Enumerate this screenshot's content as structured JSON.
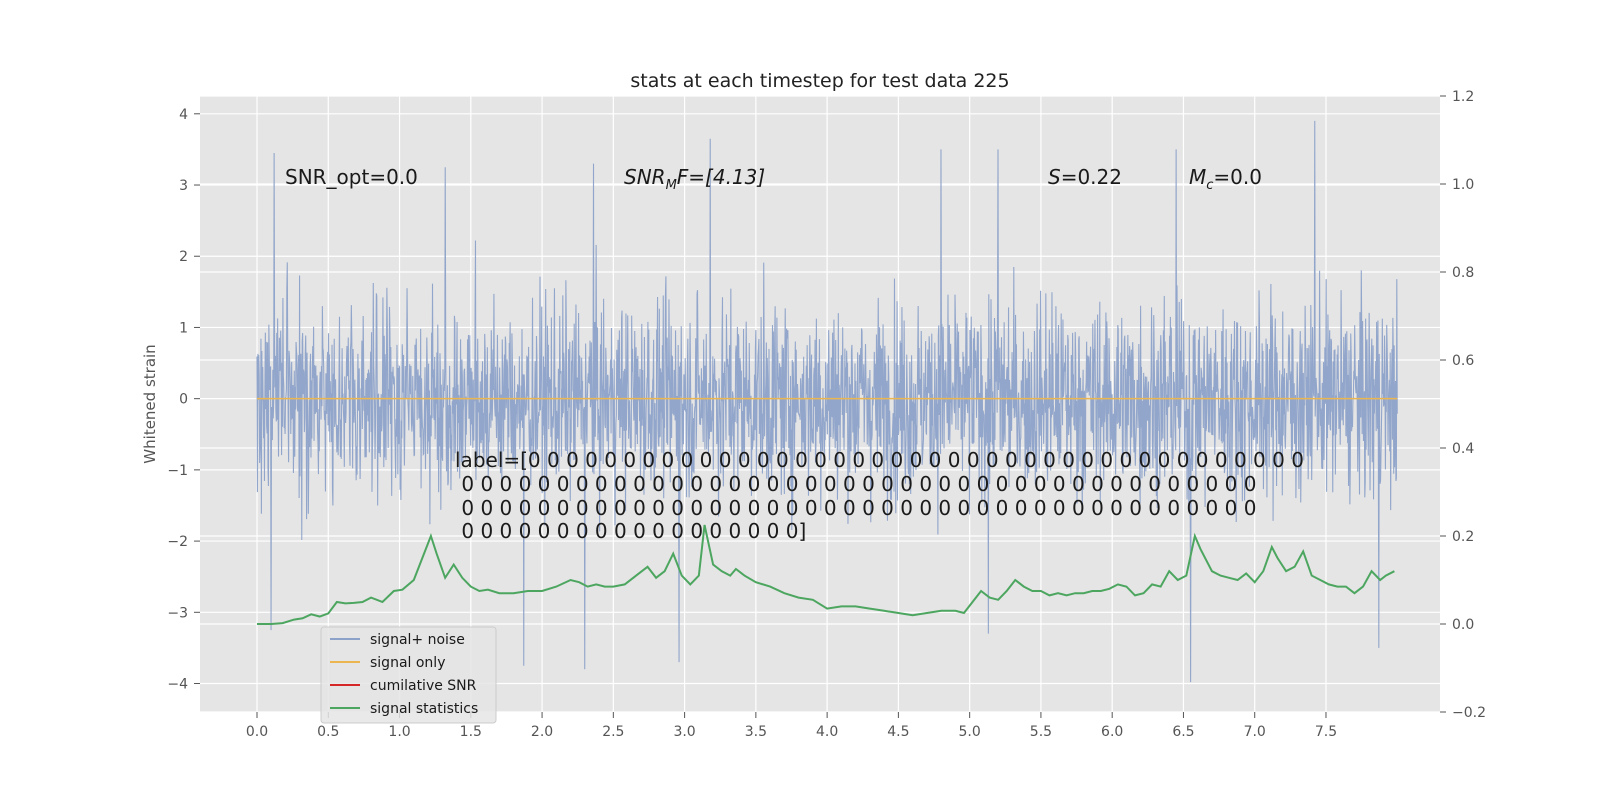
{
  "chart_data": {
    "type": "line",
    "title": "stats at each timestep for test data 225",
    "xlabel": "",
    "ylabel": "Whitened strain",
    "xlim": [
      -0.4,
      8.3
    ],
    "ylim": [
      -4.4,
      4.25
    ],
    "y2lim": [
      -0.2,
      1.2
    ],
    "grid": true,
    "legend_position": "lower-left",
    "x_ticks": [
      "0.0",
      "0.5",
      "1.0",
      "1.5",
      "2.0",
      "2.5",
      "3.0",
      "3.5",
      "4.0",
      "4.5",
      "5.0",
      "5.5",
      "6.0",
      "6.5",
      "7.0",
      "7.5"
    ],
    "y_ticks": [
      "4",
      "3",
      "2",
      "1",
      "0",
      "−1",
      "−2",
      "−3",
      "−4"
    ],
    "y2_ticks": [
      "1.2",
      "1.0",
      "0.8",
      "0.6",
      "0.4",
      "0.2",
      "0.0",
      "−0.2"
    ],
    "annotations": {
      "snr_opt": "SNR_opt=0.0",
      "snr_mf_main": "SNR",
      "snr_mf_sub": "M",
      "snr_mf_rest": "F=[4.13]",
      "s_italic": "S",
      "s_rest": "=0.22",
      "mc_main": "M",
      "mc_sub": "c",
      "mc_rest": "=0.0",
      "label_lines": [
        "label=[0 0 0 0 0 0 0 0 0 0 0 0 0 0 0 0 0 0 0 0 0 0 0 0 0 0 0 0 0 0 0 0 0 0 0 0 0 0 0 0 0",
        " 0 0 0 0 0 0 0 0 0 0 0 0 0 0 0 0 0 0 0 0 0 0 0 0 0 0 0 0 0 0 0 0 0 0 0 0 0 0 0 0 0 0",
        " 0 0 0 0 0 0 0 0 0 0 0 0 0 0 0 0 0 0 0 0 0 0 0 0 0 0 0 0 0 0 0 0 0 0 0 0 0 0 0 0 0 0",
        " 0 0 0 0 0 0 0 0 0 0 0 0 0 0 0 0 0 0]"
      ]
    },
    "legend": [
      {
        "label": "signal+ noise",
        "color": "#8da2c9"
      },
      {
        "label": "signal only",
        "color": "#ebb64f"
      },
      {
        "label": "cumilative SNR",
        "color": "#d62728"
      },
      {
        "label": "signal statistics",
        "color": "#4da660"
      }
    ],
    "series": [
      {
        "name": "signal+ noise",
        "axis": "left",
        "x_range": [
          0.0,
          8.0
        ],
        "envelope_upper_typical": 2.2,
        "envelope_lower_typical": -2.2,
        "peak_values": [
          {
            "x": 0.12,
            "y": 3.45
          },
          {
            "x": 1.32,
            "y": 3.25
          },
          {
            "x": 2.36,
            "y": 3.3
          },
          {
            "x": 3.18,
            "y": 3.65
          },
          {
            "x": 4.8,
            "y": 3.5
          },
          {
            "x": 5.2,
            "y": 3.5
          },
          {
            "x": 6.45,
            "y": 3.5
          },
          {
            "x": 7.42,
            "y": 3.9
          },
          {
            "x": 0.1,
            "y": -3.25
          },
          {
            "x": 1.87,
            "y": -3.75
          },
          {
            "x": 2.3,
            "y": -3.8
          },
          {
            "x": 2.96,
            "y": -3.7
          },
          {
            "x": 5.13,
            "y": -3.3
          },
          {
            "x": 6.55,
            "y": -3.98
          },
          {
            "x": 7.87,
            "y": -3.5
          }
        ]
      },
      {
        "name": "signal only",
        "axis": "left",
        "x": [
          0.0,
          8.0
        ],
        "y": [
          0.0,
          0.0
        ]
      },
      {
        "name": "signal statistics",
        "axis": "right",
        "x": [
          0.0,
          0.1,
          0.18,
          0.26,
          0.32,
          0.38,
          0.44,
          0.5,
          0.56,
          0.62,
          0.68,
          0.74,
          0.8,
          0.88,
          0.96,
          1.02,
          1.1,
          1.16,
          1.22,
          1.26,
          1.32,
          1.38,
          1.44,
          1.5,
          1.56,
          1.62,
          1.7,
          1.8,
          1.9,
          2.0,
          2.1,
          2.2,
          2.26,
          2.32,
          2.38,
          2.44,
          2.5,
          2.58,
          2.66,
          2.74,
          2.8,
          2.86,
          2.92,
          2.98,
          3.04,
          3.1,
          3.14,
          3.2,
          3.26,
          3.32,
          3.36,
          3.42,
          3.5,
          3.6,
          3.7,
          3.8,
          3.9,
          4.0,
          4.1,
          4.2,
          4.3,
          4.4,
          4.5,
          4.6,
          4.7,
          4.8,
          4.9,
          4.96,
          5.02,
          5.08,
          5.14,
          5.2,
          5.26,
          5.32,
          5.38,
          5.44,
          5.5,
          5.56,
          5.62,
          5.68,
          5.74,
          5.8,
          5.86,
          5.92,
          5.98,
          6.04,
          6.1,
          6.16,
          6.22,
          6.28,
          6.34,
          6.4,
          6.46,
          6.52,
          6.58,
          6.62,
          6.7,
          6.76,
          6.82,
          6.88,
          6.94,
          7.0,
          7.06,
          7.12,
          7.16,
          7.22,
          7.28,
          7.34,
          7.4,
          7.46,
          7.52,
          7.58,
          7.64,
          7.7,
          7.76,
          7.82,
          7.88,
          7.92,
          7.98
        ],
        "y": [
          0.0,
          0.0,
          0.002,
          0.01,
          0.013,
          0.022,
          0.017,
          0.024,
          0.05,
          0.047,
          0.048,
          0.05,
          0.06,
          0.05,
          0.075,
          0.078,
          0.1,
          0.15,
          0.2,
          0.16,
          0.105,
          0.135,
          0.105,
          0.085,
          0.075,
          0.078,
          0.07,
          0.07,
          0.075,
          0.075,
          0.085,
          0.1,
          0.095,
          0.085,
          0.09,
          0.085,
          0.085,
          0.09,
          0.11,
          0.13,
          0.105,
          0.12,
          0.16,
          0.11,
          0.09,
          0.11,
          0.225,
          0.135,
          0.12,
          0.11,
          0.125,
          0.11,
          0.095,
          0.085,
          0.07,
          0.06,
          0.055,
          0.035,
          0.04,
          0.04,
          0.035,
          0.03,
          0.025,
          0.02,
          0.025,
          0.03,
          0.03,
          0.025,
          0.05,
          0.075,
          0.06,
          0.055,
          0.075,
          0.1,
          0.085,
          0.075,
          0.075,
          0.065,
          0.07,
          0.065,
          0.07,
          0.07,
          0.075,
          0.075,
          0.08,
          0.09,
          0.085,
          0.065,
          0.07,
          0.09,
          0.085,
          0.12,
          0.1,
          0.11,
          0.2,
          0.17,
          0.12,
          0.11,
          0.105,
          0.1,
          0.115,
          0.095,
          0.12,
          0.175,
          0.15,
          0.12,
          0.13,
          0.165,
          0.11,
          0.1,
          0.09,
          0.085,
          0.085,
          0.07,
          0.085,
          0.12,
          0.1,
          0.11,
          0.12
        ]
      },
      {
        "name": "cumilative SNR",
        "axis": "right",
        "x": [],
        "y": []
      }
    ]
  }
}
